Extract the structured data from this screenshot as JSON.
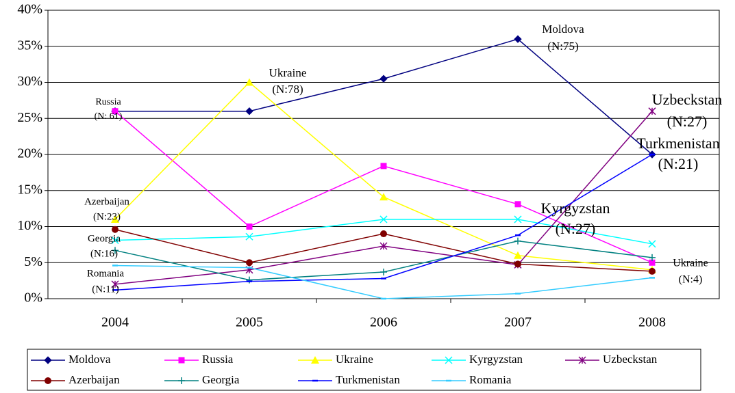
{
  "chart_data": {
    "type": "line",
    "categories": [
      "2004",
      "2005",
      "2006",
      "2007",
      "2008"
    ],
    "series": [
      {
        "name": "Moldova",
        "color": "#000080",
        "marker": "diamond",
        "values": [
          26,
          26,
          30.5,
          36,
          20
        ]
      },
      {
        "name": "Russia",
        "color": "#ff00ff",
        "marker": "square",
        "values": [
          26,
          10,
          18.4,
          13.1,
          5
        ]
      },
      {
        "name": "Ukraine",
        "color": "#ffff00",
        "marker": "triangle",
        "values": [
          11,
          30,
          14.1,
          6,
          4
        ]
      },
      {
        "name": "Kyrgyzstan",
        "color": "#00ffff",
        "marker": "x",
        "values": [
          8.1,
          8.6,
          11,
          11,
          7.6
        ]
      },
      {
        "name": "Uzbeckstan",
        "color": "#800080",
        "marker": "star",
        "values": [
          2,
          4,
          7.3,
          4.7,
          26
        ]
      },
      {
        "name": "Azerbaijan",
        "color": "#800000",
        "marker": "circle",
        "values": [
          9.6,
          5,
          9,
          4.8,
          3.8
        ]
      },
      {
        "name": "Georgia",
        "color": "#008080",
        "marker": "plus",
        "values": [
          6.7,
          2.6,
          3.7,
          8,
          5.7
        ]
      },
      {
        "name": "Turkmenistan",
        "color": "#0000ff",
        "marker": "dash",
        "values": [
          1.2,
          2.4,
          2.8,
          8.8,
          20
        ]
      },
      {
        "name": "Romania",
        "color": "#33ccff",
        "marker": "dash",
        "values": [
          4.6,
          4.3,
          0,
          0.7,
          2.9
        ]
      }
    ],
    "ylim": [
      0,
      40
    ],
    "yticks": [
      {
        "value": 0,
        "label": "0%"
      },
      {
        "value": 5,
        "label": "5%"
      },
      {
        "value": 10,
        "label": "10%"
      },
      {
        "value": 15,
        "label": "15%"
      },
      {
        "value": 20,
        "label": "20%"
      },
      {
        "value": 25,
        "label": "25%"
      },
      {
        "value": 30,
        "label": "30%"
      },
      {
        "value": 35,
        "label": "35%"
      },
      {
        "value": 40,
        "label": "40%"
      }
    ],
    "grid": true,
    "legend": "bottom",
    "annotations": [
      {
        "text": [
          "Russia",
          "(N: 61)"
        ]
      },
      {
        "text": [
          "Ukraine",
          "(N:78)"
        ]
      },
      {
        "text": [
          "Moldova",
          "(N:75)"
        ]
      },
      {
        "text": [
          "Uzbeckstan",
          "(N:27)"
        ]
      },
      {
        "text": [
          "Turkmenistan",
          "(N:21)"
        ]
      },
      {
        "text": [
          "Kyrgyzstan",
          "(N:27)"
        ]
      },
      {
        "text": [
          "Ukraine",
          "(N:4)"
        ]
      },
      {
        "text": [
          "Azerbaijan",
          "(N:23)"
        ]
      },
      {
        "text": [
          "Georgia",
          "(N:16)"
        ]
      },
      {
        "text": [
          "Romania",
          "(N:11)"
        ]
      }
    ]
  }
}
